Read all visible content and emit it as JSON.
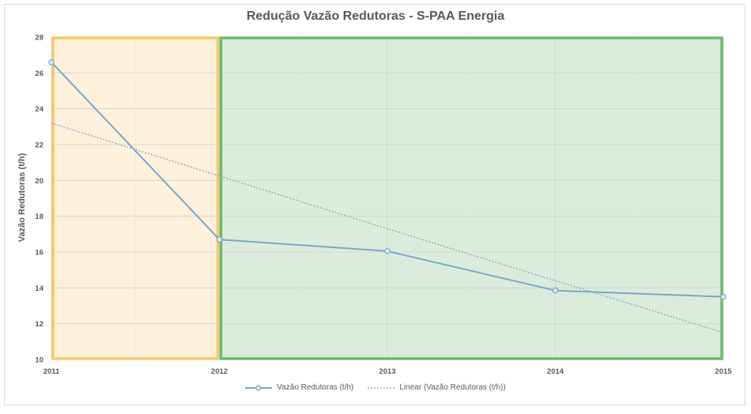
{
  "chart_data": {
    "type": "line",
    "title": "Redução Vazão Redutoras - S-PAA Energia",
    "ylabel": "Vazão Redutoras (t/h)",
    "xlabel": "",
    "x": [
      2011,
      2012,
      2013,
      2014,
      2015
    ],
    "x_tick_labels": [
      "2011",
      "2012",
      "2013",
      "2014",
      "2015"
    ],
    "ylim": [
      10,
      28
    ],
    "y_ticks": [
      10,
      12,
      14,
      16,
      18,
      20,
      22,
      24,
      26,
      28
    ],
    "grid": true,
    "legend_position": "bottom",
    "series": [
      {
        "name": "Vazão Redutoras (t/h)",
        "values": [
          26.6,
          16.7,
          16.05,
          13.85,
          13.5
        ],
        "color": "#7aa6c8",
        "style": "solid-markers"
      },
      {
        "name": "Linear (Vazão Redutoras (t/h))",
        "values": [
          23.2,
          20.25,
          17.3,
          14.4,
          11.5
        ],
        "color": "#7aa6c8",
        "style": "dotted"
      }
    ],
    "regions": [
      {
        "from": 2011,
        "to": 2012,
        "fill": "#fdf1dc",
        "stroke": "#f5c86a"
      },
      {
        "from": 2012,
        "to": 2015,
        "fill": "#dcecdc",
        "stroke": "#6bbb6b"
      }
    ]
  }
}
